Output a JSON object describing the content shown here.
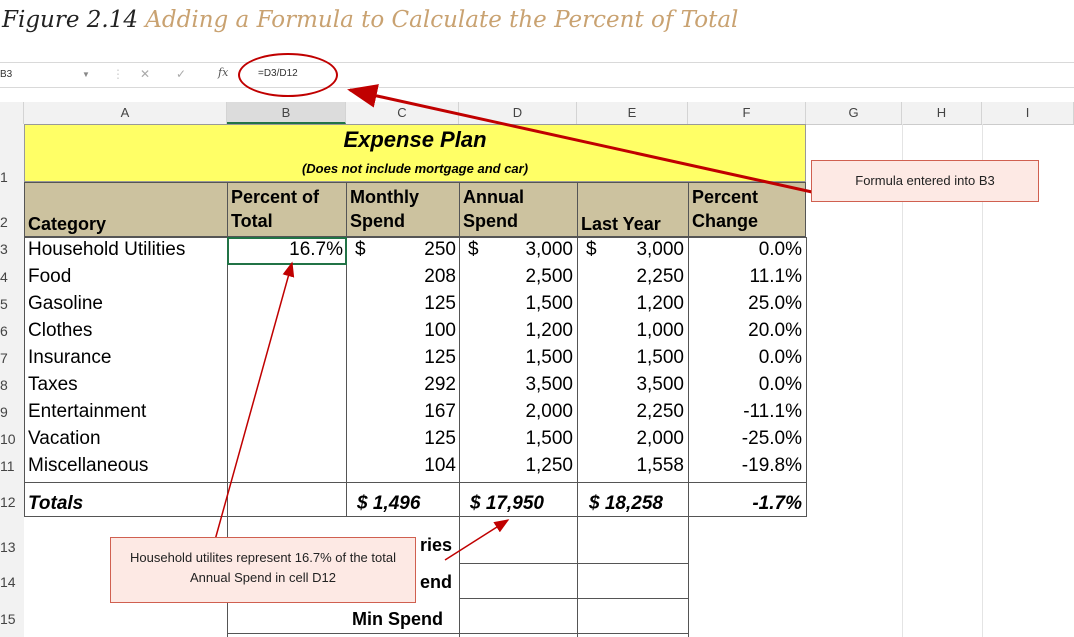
{
  "caption": {
    "figure": "Figure 2.14",
    "title": "Adding a Formula to Calculate the Percent of Total"
  },
  "formula_bar": {
    "name_box": "B3",
    "fx_label": "fx",
    "formula": "=D3/D12"
  },
  "column_headers": [
    "A",
    "B",
    "C",
    "D",
    "E",
    "F",
    "G",
    "H",
    "I"
  ],
  "row_headers": [
    "1",
    "2",
    "3",
    "4",
    "5",
    "6",
    "7",
    "8",
    "9",
    "10",
    "11",
    "12",
    "13",
    "14",
    "15"
  ],
  "sheet": {
    "title": "Expense Plan",
    "subtitle": "(Does not include mortgage and car)",
    "headers": {
      "category": "Category",
      "percent_total_1": "Percent of",
      "percent_total_2": "Total",
      "monthly_1": "Monthly",
      "monthly_2": "Spend",
      "annual_1": "Annual",
      "annual_2": "Spend",
      "last_year": "Last Year",
      "pct_change_1": "Percent",
      "pct_change_2": "Change"
    },
    "rows": [
      {
        "category": "Household Utilities",
        "percent": "16.7%",
        "monthly_sym": "$",
        "monthly": "250",
        "annual_sym": "$",
        "annual": "3,000",
        "last_sym": "$",
        "last": "3,000",
        "change": "0.0%"
      },
      {
        "category": "Food",
        "percent": "",
        "monthly_sym": "",
        "monthly": "208",
        "annual_sym": "",
        "annual": "2,500",
        "last_sym": "",
        "last": "2,250",
        "change": "11.1%"
      },
      {
        "category": "Gasoline",
        "percent": "",
        "monthly_sym": "",
        "monthly": "125",
        "annual_sym": "",
        "annual": "1,500",
        "last_sym": "",
        "last": "1,200",
        "change": "25.0%"
      },
      {
        "category": "Clothes",
        "percent": "",
        "monthly_sym": "",
        "monthly": "100",
        "annual_sym": "",
        "annual": "1,200",
        "last_sym": "",
        "last": "1,000",
        "change": "20.0%"
      },
      {
        "category": "Insurance",
        "percent": "",
        "monthly_sym": "",
        "monthly": "125",
        "annual_sym": "",
        "annual": "1,500",
        "last_sym": "",
        "last": "1,500",
        "change": "0.0%"
      },
      {
        "category": "Taxes",
        "percent": "",
        "monthly_sym": "",
        "monthly": "292",
        "annual_sym": "",
        "annual": "3,500",
        "last_sym": "",
        "last": "3,500",
        "change": "0.0%"
      },
      {
        "category": "Entertainment",
        "percent": "",
        "monthly_sym": "",
        "monthly": "167",
        "annual_sym": "",
        "annual": "2,000",
        "last_sym": "",
        "last": "2,250",
        "change": "-11.1%"
      },
      {
        "category": "Vacation",
        "percent": "",
        "monthly_sym": "",
        "monthly": "125",
        "annual_sym": "",
        "annual": "1,500",
        "last_sym": "",
        "last": "2,000",
        "change": "-25.0%"
      },
      {
        "category": "Miscellaneous",
        "percent": "",
        "monthly_sym": "",
        "monthly": "104",
        "annual_sym": "",
        "annual": "1,250",
        "last_sym": "",
        "last": "1,558",
        "change": "-19.8%"
      }
    ],
    "totals": {
      "label": "Totals",
      "monthly": "$   1,496",
      "annual": "$ 17,950",
      "last": "$ 18,258",
      "change": "-1.7%"
    },
    "stats": {
      "row13_tail": "ries",
      "row14_tail": "end",
      "row15": "Min Spend"
    }
  },
  "callouts": {
    "formula": "Formula entered into B3",
    "explain": "Household utilites represent 16.7% of the total Annual Spend in cell D12"
  },
  "colors": {
    "title_band": "#ffff66",
    "header_band": "#ccc29f",
    "annotation_red": "#c00000",
    "callout_fill": "#fde9e4"
  }
}
